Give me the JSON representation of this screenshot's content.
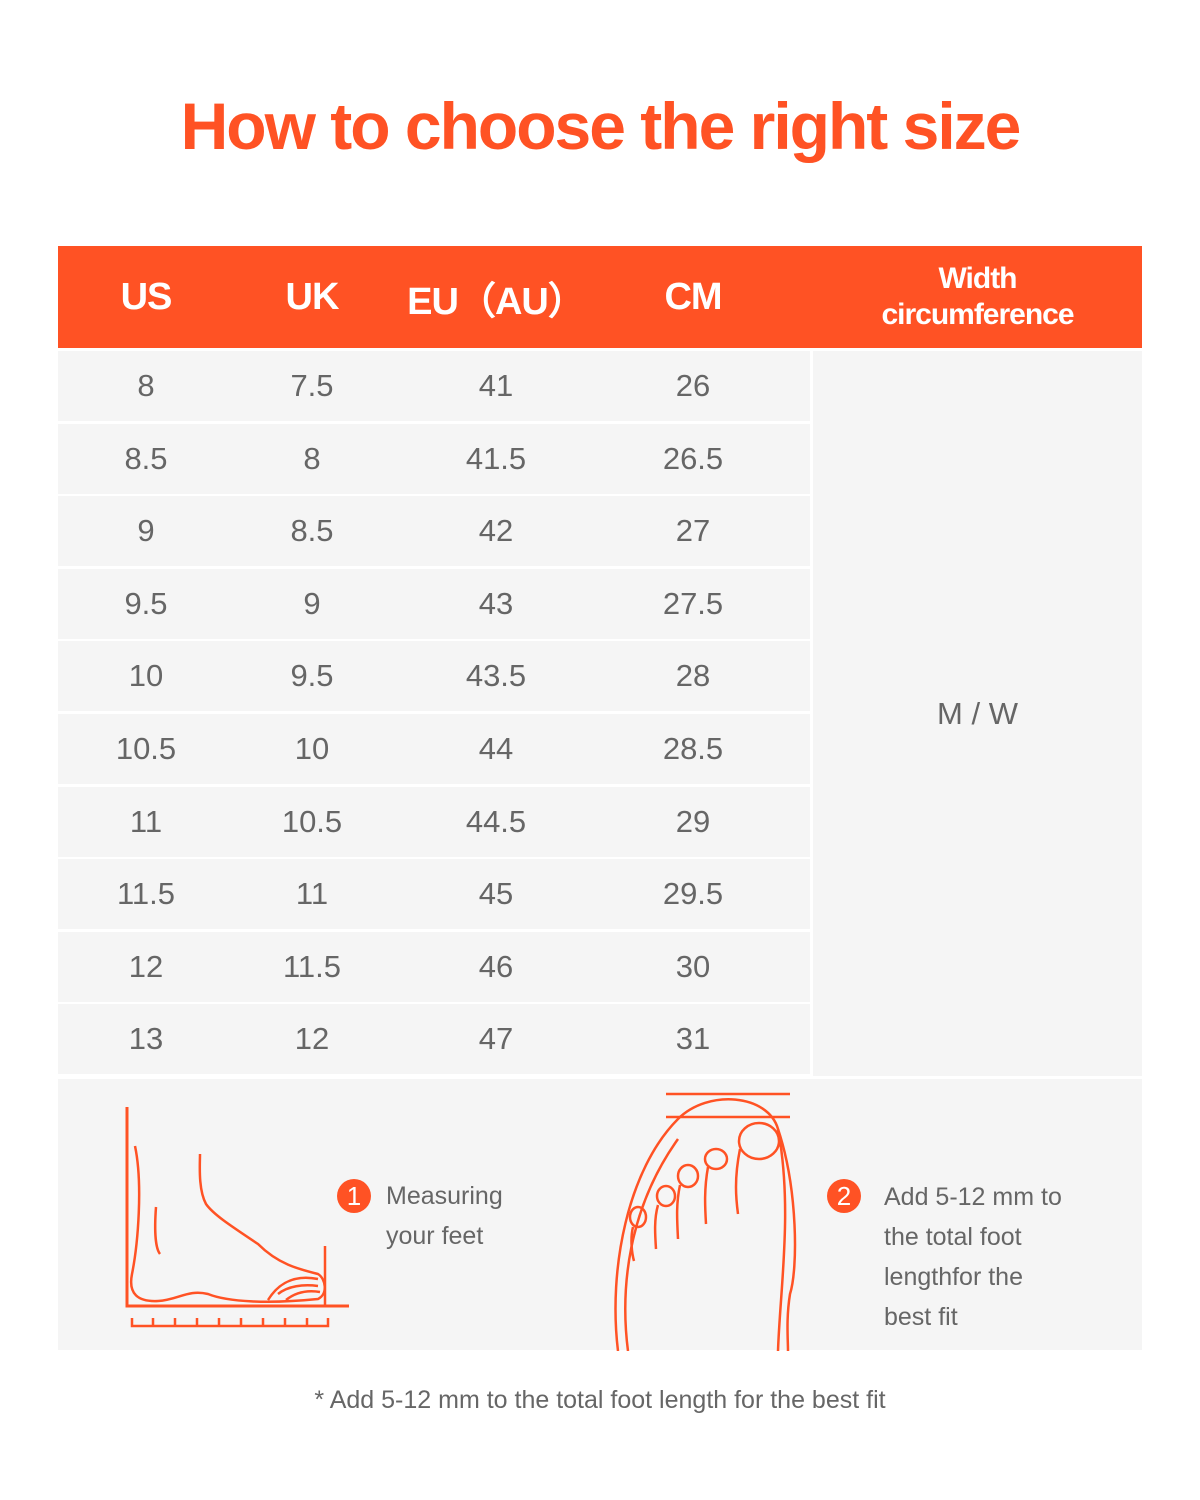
{
  "title": "How to choose the right size",
  "table": {
    "headers": [
      "US",
      "UK",
      "EU（AU）",
      "CM",
      "Width\ncircumference"
    ],
    "header_width_line1": "Width",
    "header_width_line2": "circumference",
    "rows": [
      [
        "8",
        "7.5",
        "41",
        "26"
      ],
      [
        "8.5",
        "8",
        "41.5",
        "26.5"
      ],
      [
        "9",
        "8.5",
        "42",
        "27"
      ],
      [
        "9.5",
        "9",
        "43",
        "27.5"
      ],
      [
        "10",
        "9.5",
        "43.5",
        "28"
      ],
      [
        "10.5",
        "10",
        "44",
        "28.5"
      ],
      [
        "11",
        "10.5",
        "44.5",
        "29"
      ],
      [
        "11.5",
        "11",
        "45",
        "29.5"
      ],
      [
        "12",
        "11.5",
        "46",
        "30"
      ],
      [
        "13",
        "12",
        "47",
        "31"
      ]
    ],
    "width_value": "M / W"
  },
  "steps": [
    {
      "number": "1",
      "lines": [
        "Measuring",
        "your feet"
      ]
    },
    {
      "number": "2",
      "lines": [
        "Add 5-12 mm to",
        "the total foot",
        "lengthfor the",
        "best fit"
      ]
    }
  ],
  "footnote": "* Add 5-12 mm to the total foot length for the best fit",
  "colors": {
    "accent": "#ff5224",
    "row_bg": "#f5f5f5",
    "text": "#666666"
  }
}
